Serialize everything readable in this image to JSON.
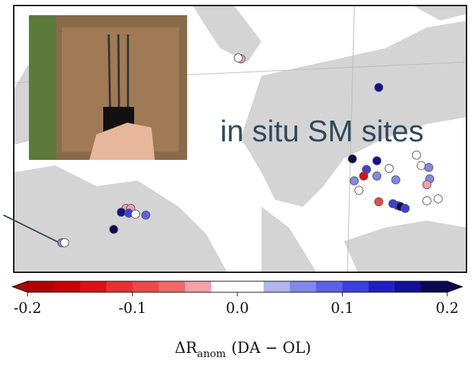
{
  "chart_data": {
    "type": "map-scatter",
    "annotation": "in situ SM sites",
    "lonlim": [
      -12,
      36
    ],
    "latlim": [
      34,
      62
    ],
    "points": {
      "lon": [
        -6.9,
        -6.6,
        12.1,
        11.8,
        -0.1,
        0.4,
        -0.6,
        0.2,
        0.9,
        2.0,
        -1.4,
        26.7,
        23.9,
        25.4,
        26.5,
        27.8,
        25.1,
        24.1,
        24.6,
        26.5,
        28.5,
        30.7,
        31.2,
        32.0,
        32.1,
        31.8,
        26.7,
        28.2,
        28.7,
        29.0,
        29.5,
        31.8,
        33.0
      ],
      "lat": [
        37.1,
        37.1,
        56.4,
        56.5,
        40.7,
        40.7,
        40.3,
        40.2,
        40.1,
        40.0,
        38.5,
        53.4,
        45.9,
        44.8,
        45.7,
        44.9,
        44.1,
        43.6,
        42.6,
        44.1,
        43.7,
        46.3,
        45.2,
        45.0,
        43.8,
        43.2,
        41.4,
        41.2,
        41.0,
        40.9,
        40.7,
        41.5,
        41.7
      ],
      "values": [
        0.05,
        0.0,
        -0.05,
        0.0,
        -0.05,
        -0.05,
        0.15,
        0.1,
        0.0,
        0.08,
        0.2,
        0.15,
        0.2,
        0.1,
        0.15,
        0.0,
        -0.15,
        0.05,
        0.0,
        0.05,
        0.05,
        0.0,
        0.0,
        0.05,
        0.05,
        -0.05,
        -0.1,
        0.1,
        0.1,
        0.2,
        0.1,
        0.0,
        0.0
      ]
    },
    "colorbar": {
      "lim": [
        -0.2,
        0.2
      ],
      "colors": [
        "#b30000",
        "#cc0000",
        "#dd1111",
        "#e83030",
        "#f04848",
        "#f06868",
        "#f4a0a8",
        "#ffffff",
        "#ffffff",
        "#b0b4f0",
        "#8088ee",
        "#5a60e8",
        "#3a40e0",
        "#2020c8",
        "#10109a",
        "#0a0a50"
      ],
      "ticks": [
        -0.2,
        -0.1,
        {
          "value": 0,
          "label": "0.0"
        },
        0.1,
        0.2
      ],
      "label": {
        "main": "ΔR",
        "sub": "anom",
        "suffix": "(DA − OL)"
      }
    }
  }
}
